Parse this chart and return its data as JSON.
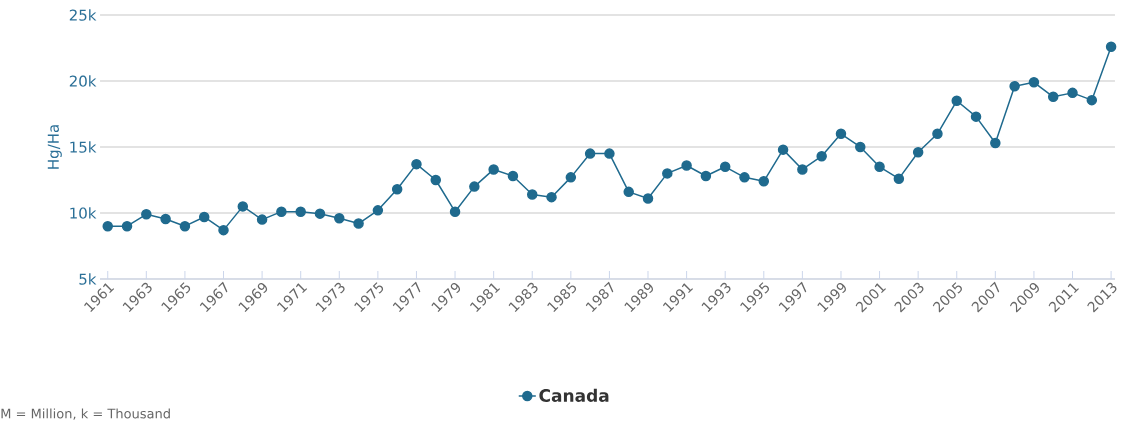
{
  "chart_data": {
    "type": "line",
    "ylabel": "Hg/Ha",
    "annotations": [
      "M = Million, k = Thousand"
    ],
    "x": [
      1961,
      1962,
      1963,
      1964,
      1965,
      1966,
      1967,
      1968,
      1969,
      1970,
      1971,
      1972,
      1973,
      1974,
      1975,
      1976,
      1977,
      1978,
      1979,
      1980,
      1981,
      1982,
      1983,
      1984,
      1985,
      1986,
      1987,
      1988,
      1989,
      1990,
      1991,
      1992,
      1993,
      1994,
      1995,
      1996,
      1997,
      1998,
      1999,
      2000,
      2001,
      2002,
      2003,
      2004,
      2005,
      2006,
      2007,
      2008,
      2009,
      2010,
      2011,
      2012,
      2013
    ],
    "series": [
      {
        "name": "Canada",
        "color": "#1f6a8e",
        "values": [
          9000,
          9000,
          9900,
          9550,
          9000,
          9700,
          8700,
          10500,
          9500,
          10100,
          10100,
          9950,
          9600,
          9200,
          10200,
          11800,
          13700,
          12500,
          10100,
          12000,
          13300,
          12800,
          11400,
          11200,
          12700,
          14500,
          14500,
          11600,
          11100,
          13000,
          13600,
          12800,
          13500,
          12700,
          12400,
          14800,
          13300,
          14300,
          16000,
          15000,
          13500,
          12600,
          14600,
          16000,
          18500,
          17300,
          15300,
          19600,
          19900,
          18800,
          19100,
          18550,
          22600
        ]
      }
    ],
    "xlim": [
      1960.6,
      2013.2
    ],
    "ylim": [
      5000,
      25000
    ],
    "xticks": [
      1961,
      1963,
      1965,
      1967,
      1969,
      1971,
      1973,
      1975,
      1977,
      1979,
      1981,
      1983,
      1985,
      1987,
      1989,
      1991,
      1993,
      1995,
      1997,
      1999,
      2001,
      2003,
      2005,
      2007,
      2009,
      2011,
      2013
    ],
    "yticks": [
      {
        "value": 5000,
        "label": "5k"
      },
      {
        "value": 10000,
        "label": "10k"
      },
      {
        "value": 15000,
        "label": "15k"
      },
      {
        "value": 20000,
        "label": "20k"
      },
      {
        "value": 25000,
        "label": "25k"
      }
    ],
    "grid": "y",
    "legend": "bottom",
    "marker": "circle",
    "line_style": "solid"
  }
}
